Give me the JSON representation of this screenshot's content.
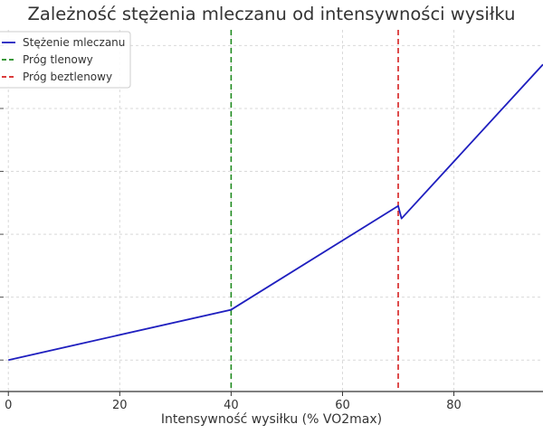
{
  "chart_data": {
    "type": "line",
    "title": "Zależność stężenia mleczanu od intensywności wysiłku",
    "xlabel": "Intensywność wysiłku (% VO2max)",
    "ylabel": "",
    "xlim": [
      -1.5,
      96
    ],
    "ylim": [
      0,
      11.5
    ],
    "x_ticks": [
      0,
      20,
      40,
      60,
      80
    ],
    "y_gridlines": [
      1,
      3,
      5,
      7,
      9,
      11
    ],
    "y_tick_labels_visible": false,
    "grid": true,
    "legend_position": "top-left",
    "series": [
      {
        "name": "Stężenie mleczanu",
        "color": "#1f1fbf",
        "style": "solid",
        "x": [
          0,
          40,
          70,
          70.6,
          96
        ],
        "y": [
          1.0,
          2.6,
          5.9,
          5.5,
          10.4
        ]
      }
    ],
    "vlines": [
      {
        "name": "Próg tlenowy",
        "x": 40,
        "color": "#1e8a1e",
        "style": "dashed"
      },
      {
        "name": "Próg beztlenowy",
        "x": 70,
        "color": "#d62020",
        "style": "dashed"
      }
    ]
  }
}
